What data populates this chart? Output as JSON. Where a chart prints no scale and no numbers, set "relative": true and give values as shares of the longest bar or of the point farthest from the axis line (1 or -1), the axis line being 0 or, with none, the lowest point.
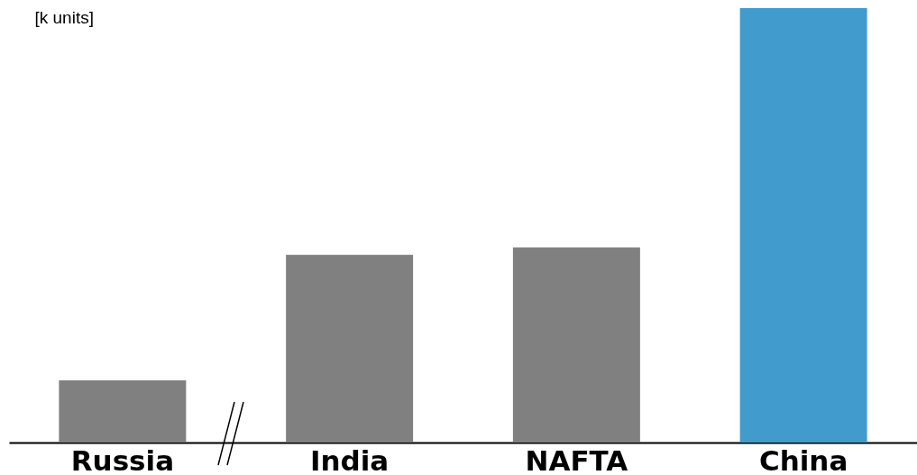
{
  "chart_data": {
    "type": "bar",
    "ylabel": "[k units]",
    "relative": true,
    "categories": [
      "Russia",
      "India",
      "NAFTA",
      "China"
    ],
    "values": [
      0.143,
      0.432,
      0.449,
      1
    ],
    "colors": [
      "#808080",
      "#808080",
      "#808080",
      "#429bcd"
    ]
  }
}
